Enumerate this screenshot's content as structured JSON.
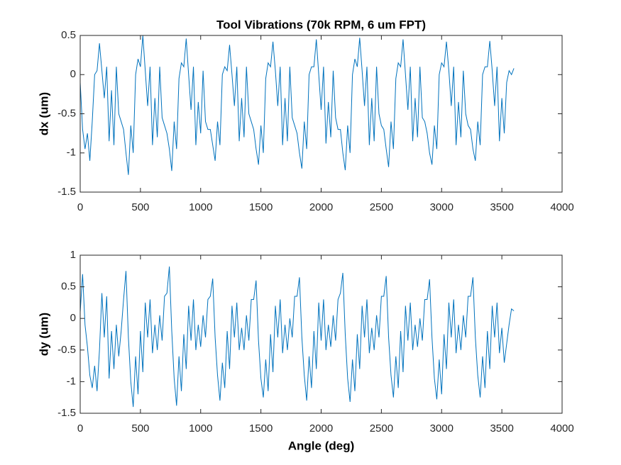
{
  "chart_data": [
    {
      "type": "line",
      "title": "Tool Vibrations (70k RPM, 6 um FPT)",
      "ylabel": "dx (um)",
      "x": [
        0,
        20,
        40,
        60,
        80,
        100,
        120,
        140,
        160,
        180,
        200,
        220,
        240,
        260,
        280,
        300,
        320,
        340,
        360,
        380,
        400,
        420,
        440,
        460,
        480,
        500,
        520,
        540,
        560,
        580,
        600,
        620,
        640,
        660,
        680,
        700,
        720,
        740,
        760,
        780,
        800,
        820,
        840,
        860,
        880,
        900,
        920,
        940,
        960,
        980,
        1000,
        1020,
        1040,
        1060,
        1080,
        1100,
        1120,
        1140,
        1160,
        1180,
        1200,
        1220,
        1240,
        1260,
        1280,
        1300,
        1320,
        1340,
        1360,
        1380,
        1400,
        1420,
        1440,
        1460,
        1480,
        1500,
        1520,
        1540,
        1560,
        1580,
        1600,
        1620,
        1640,
        1660,
        1680,
        1700,
        1720,
        1740,
        1760,
        1780,
        1800,
        1820,
        1840,
        1860,
        1880,
        1900,
        1920,
        1940,
        1960,
        1980,
        2000,
        2020,
        2040,
        2060,
        2080,
        2100,
        2120,
        2140,
        2160,
        2180,
        2200,
        2220,
        2240,
        2260,
        2280,
        2300,
        2320,
        2340,
        2360,
        2380,
        2400,
        2420,
        2440,
        2460,
        2480,
        2500,
        2520,
        2540,
        2560,
        2580,
        2600,
        2620,
        2640,
        2660,
        2680,
        2700,
        2720,
        2740,
        2760,
        2780,
        2800,
        2820,
        2840,
        2860,
        2880,
        2900,
        2920,
        2940,
        2960,
        2980,
        3000,
        3020,
        3040,
        3060,
        3080,
        3100,
        3120,
        3140,
        3160,
        3180,
        3200,
        3220,
        3240,
        3260,
        3280,
        3300,
        3320,
        3340,
        3360,
        3380,
        3400,
        3420,
        3440,
        3460,
        3480,
        3500,
        3520,
        3540,
        3560,
        3580,
        3600
      ],
      "color": "#0072bd",
      "values": [
        -0.1,
        -0.7,
        -0.95,
        -0.75,
        -1.1,
        -0.6,
        0.0,
        0.05,
        0.4,
        0.05,
        -0.3,
        0.1,
        -0.85,
        -0.2,
        -0.9,
        0.1,
        -0.5,
        -0.6,
        -0.7,
        -1.0,
        -1.28,
        -0.65,
        -1.0,
        0.0,
        0.2,
        0.1,
        0.5,
        0.05,
        -0.4,
        0.1,
        -0.9,
        -0.3,
        -0.8,
        0.1,
        -0.55,
        -0.65,
        -0.75,
        -0.95,
        -1.23,
        -0.6,
        -0.95,
        -0.05,
        0.15,
        0.1,
        0.46,
        0.0,
        -0.45,
        0.1,
        -0.9,
        -0.35,
        -0.75,
        0.05,
        -0.6,
        -0.7,
        -0.7,
        -0.9,
        -1.1,
        -0.6,
        -0.9,
        0.0,
        0.1,
        0.05,
        0.38,
        0.0,
        -0.4,
        0.1,
        -0.85,
        -0.3,
        -0.8,
        0.1,
        -0.5,
        -0.6,
        -0.7,
        -0.95,
        -1.15,
        -0.65,
        -1.0,
        -0.05,
        0.15,
        0.1,
        0.42,
        0.05,
        -0.4,
        0.1,
        -0.9,
        -0.3,
        -0.85,
        0.1,
        -0.55,
        -0.65,
        -0.75,
        -1.0,
        -1.2,
        -0.6,
        -0.95,
        0.0,
        0.1,
        0.1,
        0.45,
        0.0,
        -0.45,
        0.1,
        -0.88,
        -0.35,
        -0.8,
        0.05,
        -0.55,
        -0.7,
        -0.7,
        -1.0,
        -1.22,
        -0.65,
        -1.0,
        0.0,
        0.2,
        0.1,
        0.47,
        0.05,
        -0.4,
        0.1,
        -0.9,
        -0.3,
        -0.85,
        0.1,
        -0.5,
        -0.65,
        -0.7,
        -0.95,
        -1.18,
        -0.6,
        -0.95,
        -0.05,
        0.15,
        0.1,
        0.45,
        0.0,
        -0.45,
        0.1,
        -0.85,
        -0.3,
        -0.8,
        0.1,
        -0.55,
        -0.6,
        -0.75,
        -1.0,
        -1.15,
        -0.65,
        -0.95,
        0.0,
        0.15,
        0.1,
        0.42,
        0.05,
        -0.4,
        0.1,
        -0.9,
        -0.35,
        -0.8,
        0.05,
        -0.5,
        -0.65,
        -0.7,
        -0.95,
        -1.1,
        -0.6,
        -0.9,
        0.0,
        0.1,
        0.1,
        0.43,
        0.05,
        -0.4,
        0.1,
        -0.85,
        -0.3,
        -0.75,
        -0.1,
        0.05,
        0.0,
        0.08
      ],
      "xlim": [
        0,
        4000
      ],
      "xticks": [
        0,
        500,
        1000,
        1500,
        2000,
        2500,
        3000,
        3500,
        4000
      ],
      "ylim": [
        -1.5,
        0.5
      ],
      "yticks": [
        -1.5,
        -1,
        -0.5,
        0,
        0.5
      ]
    },
    {
      "type": "line",
      "xlabel": "Angle (deg)",
      "ylabel": "dy (um)",
      "x": [
        0,
        20,
        40,
        60,
        80,
        100,
        120,
        140,
        160,
        180,
        200,
        220,
        240,
        260,
        280,
        300,
        320,
        340,
        360,
        380,
        400,
        420,
        440,
        460,
        480,
        500,
        520,
        540,
        560,
        580,
        600,
        620,
        640,
        660,
        680,
        700,
        720,
        740,
        760,
        780,
        800,
        820,
        840,
        860,
        880,
        900,
        920,
        940,
        960,
        980,
        1000,
        1020,
        1040,
        1060,
        1080,
        1100,
        1120,
        1140,
        1160,
        1180,
        1200,
        1220,
        1240,
        1260,
        1280,
        1300,
        1320,
        1340,
        1360,
        1380,
        1400,
        1420,
        1440,
        1460,
        1480,
        1500,
        1520,
        1540,
        1560,
        1580,
        1600,
        1620,
        1640,
        1660,
        1680,
        1700,
        1720,
        1740,
        1760,
        1780,
        1800,
        1820,
        1840,
        1860,
        1880,
        1900,
        1920,
        1940,
        1960,
        1980,
        2000,
        2020,
        2040,
        2060,
        2080,
        2100,
        2120,
        2140,
        2160,
        2180,
        2200,
        2220,
        2240,
        2260,
        2280,
        2300,
        2320,
        2340,
        2360,
        2380,
        2400,
        2420,
        2440,
        2460,
        2480,
        2500,
        2520,
        2540,
        2560,
        2580,
        2600,
        2620,
        2640,
        2660,
        2680,
        2700,
        2720,
        2740,
        2760,
        2780,
        2800,
        2820,
        2840,
        2860,
        2880,
        2900,
        2920,
        2940,
        2960,
        2980,
        3000,
        3020,
        3040,
        3060,
        3080,
        3100,
        3120,
        3140,
        3160,
        3180,
        3200,
        3220,
        3240,
        3260,
        3280,
        3300,
        3320,
        3340,
        3360,
        3380,
        3400,
        3420,
        3440,
        3460,
        3480,
        3500,
        3520,
        3540,
        3560,
        3580,
        3600
      ],
      "color": "#0072bd",
      "values": [
        0.1,
        0.7,
        -0.1,
        -0.45,
        -0.9,
        -1.1,
        -0.75,
        -1.15,
        -0.5,
        0.4,
        -0.3,
        0.35,
        -0.95,
        -0.2,
        -0.8,
        -0.1,
        -0.6,
        -0.2,
        0.3,
        0.75,
        -0.3,
        -1.0,
        -1.4,
        -0.6,
        -1.2,
        -0.2,
        -0.85,
        0.25,
        -0.3,
        0.3,
        -0.55,
        -0.1,
        -0.5,
        0.05,
        -0.35,
        0.35,
        0.4,
        0.82,
        -0.2,
        -0.95,
        -1.38,
        -0.6,
        -1.15,
        -0.25,
        -0.8,
        0.2,
        -0.35,
        0.3,
        -0.5,
        -0.1,
        -0.45,
        0.05,
        -0.3,
        0.3,
        0.35,
        0.63,
        -0.3,
        -0.9,
        -1.3,
        -0.7,
        -1.1,
        -0.2,
        -0.8,
        0.2,
        -0.3,
        0.25,
        -0.5,
        -0.15,
        -0.5,
        0.05,
        -0.35,
        0.3,
        0.3,
        0.6,
        -0.35,
        -0.95,
        -1.25,
        -0.65,
        -1.15,
        -0.25,
        -0.85,
        0.2,
        -0.3,
        0.3,
        -0.55,
        -0.1,
        -0.5,
        0.0,
        -0.3,
        0.35,
        0.35,
        0.65,
        -0.3,
        -0.9,
        -1.3,
        -0.6,
        -1.1,
        -0.2,
        -0.8,
        0.25,
        -0.35,
        0.3,
        -0.5,
        -0.1,
        -0.45,
        0.05,
        -0.35,
        0.3,
        0.4,
        0.72,
        -0.25,
        -0.95,
        -1.32,
        -0.65,
        -1.15,
        -0.25,
        -0.8,
        0.2,
        -0.3,
        0.3,
        -0.55,
        -0.15,
        -0.5,
        0.05,
        -0.3,
        0.35,
        0.35,
        0.67,
        -0.3,
        -0.9,
        -1.25,
        -0.6,
        -1.1,
        -0.2,
        -0.85,
        0.2,
        -0.35,
        0.25,
        -0.5,
        -0.1,
        -0.45,
        0.0,
        -0.35,
        0.3,
        0.3,
        0.62,
        -0.3,
        -0.95,
        -1.28,
        -0.65,
        -1.2,
        -0.25,
        -0.8,
        0.25,
        -0.3,
        0.3,
        -0.55,
        -0.1,
        -0.5,
        0.05,
        -0.3,
        0.35,
        0.35,
        0.65,
        -0.3,
        -0.9,
        -1.25,
        -0.6,
        -1.1,
        -0.2,
        -0.8,
        0.2,
        -0.3,
        0.25,
        -0.55,
        -0.15,
        -0.7,
        -0.4,
        -0.1,
        0.15,
        0.12
      ],
      "xlim": [
        0,
        4000
      ],
      "xticks": [
        0,
        500,
        1000,
        1500,
        2000,
        2500,
        3000,
        3500,
        4000
      ],
      "ylim": [
        -1.5,
        1
      ],
      "yticks": [
        -1.5,
        -1,
        -0.5,
        0,
        0.5,
        1
      ]
    }
  ]
}
